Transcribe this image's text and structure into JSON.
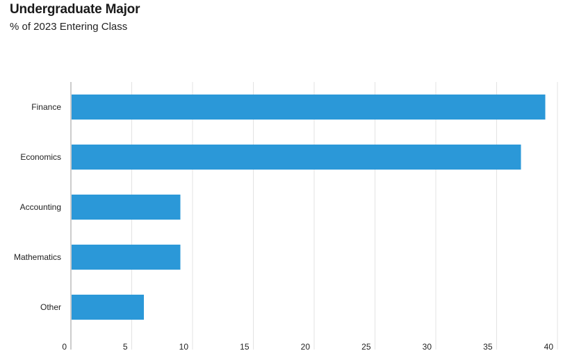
{
  "title": "Undergraduate Major",
  "subtitle": "% of 2023 Entering Class",
  "colors": {
    "bar": "#2b98d8",
    "grid": "#e3e3e3",
    "axis": "#999999"
  },
  "chart_data": {
    "type": "bar",
    "orientation": "horizontal",
    "title": "Undergraduate Major",
    "subtitle": "% of 2023 Entering Class",
    "categories": [
      "Finance",
      "Economics",
      "Accounting",
      "Mathematics",
      "Other"
    ],
    "values": [
      39,
      37,
      9,
      9,
      6
    ],
    "xlim": [
      0,
      40
    ],
    "xticks": [
      0,
      5,
      10,
      15,
      20,
      25,
      30,
      35,
      40
    ],
    "xlabel": "",
    "ylabel": "",
    "grid": true,
    "legend": "none"
  }
}
